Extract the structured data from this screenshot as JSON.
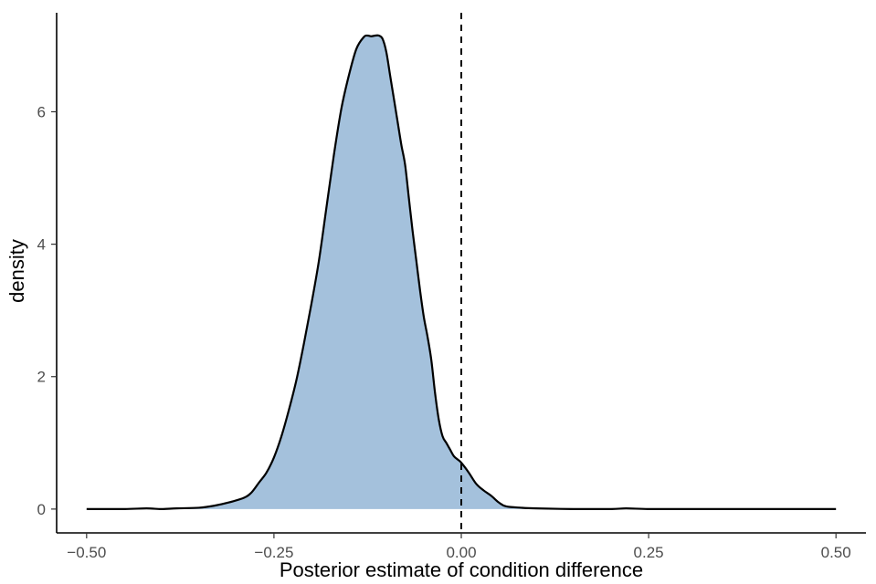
{
  "chart_data": {
    "type": "area",
    "xlabel": "Posterior estimate of condition difference",
    "ylabel": "density",
    "xlim": [
      -0.54,
      0.54
    ],
    "ylim": [
      -0.36,
      7.55
    ],
    "x_ticks": [
      -0.5,
      -0.25,
      0,
      0.25,
      0.5
    ],
    "x_tick_labels": [
      "−0.50",
      "−0.25",
      "0.00",
      "0.25",
      "0.50"
    ],
    "y_ticks": [
      0,
      2,
      4,
      6
    ],
    "y_tick_labels": [
      "0",
      "2",
      "4",
      "6"
    ],
    "reference_line": {
      "x": 0.0,
      "style": "dashed"
    },
    "grid": false,
    "colors": {
      "fill": "#a4c1dc",
      "line": "#000000"
    },
    "series": [
      {
        "x": [
          -0.5,
          -0.45,
          -0.42,
          -0.4,
          -0.38,
          -0.35,
          -0.33,
          -0.31,
          -0.29,
          -0.28,
          -0.27,
          -0.26,
          -0.25,
          -0.24,
          -0.23,
          -0.22,
          -0.21,
          -0.2,
          -0.19,
          -0.18,
          -0.17,
          -0.16,
          -0.15,
          -0.14,
          -0.13,
          -0.125,
          -0.12,
          -0.115,
          -0.11,
          -0.105,
          -0.1,
          -0.095,
          -0.09,
          -0.085,
          -0.08,
          -0.075,
          -0.07,
          -0.065,
          -0.06,
          -0.055,
          -0.05,
          -0.045,
          -0.04,
          -0.035,
          -0.03,
          -0.025,
          -0.02,
          -0.015,
          -0.01,
          -0.005,
          0.0,
          0.01,
          0.02,
          0.03,
          0.04,
          0.05,
          0.06,
          0.08,
          0.1,
          0.15,
          0.2,
          0.22,
          0.25,
          0.3,
          0.4,
          0.5
        ],
        "y": [
          0.0,
          0.0,
          0.01,
          0.0,
          0.01,
          0.02,
          0.05,
          0.1,
          0.17,
          0.25,
          0.4,
          0.55,
          0.78,
          1.1,
          1.5,
          1.95,
          2.5,
          3.1,
          3.75,
          4.55,
          5.35,
          6.05,
          6.55,
          6.95,
          7.13,
          7.15,
          7.14,
          7.15,
          7.15,
          7.1,
          6.9,
          6.55,
          6.2,
          5.85,
          5.5,
          5.2,
          4.7,
          4.2,
          3.75,
          3.3,
          2.9,
          2.6,
          2.25,
          1.75,
          1.35,
          1.1,
          1.0,
          0.9,
          0.8,
          0.75,
          0.7,
          0.55,
          0.38,
          0.28,
          0.2,
          0.1,
          0.04,
          0.02,
          0.01,
          0.0,
          0.0,
          0.01,
          0.0,
          0.0,
          0.0,
          0.0
        ]
      }
    ]
  }
}
